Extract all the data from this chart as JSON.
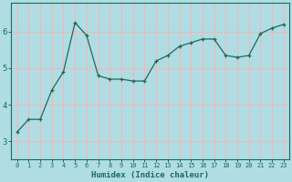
{
  "x": [
    0,
    1,
    2,
    3,
    4,
    5,
    6,
    7,
    8,
    9,
    10,
    11,
    12,
    13,
    14,
    15,
    16,
    17,
    18,
    19,
    20,
    21,
    22,
    23
  ],
  "y": [
    3.25,
    3.6,
    3.6,
    4.4,
    4.9,
    6.25,
    5.9,
    4.8,
    4.7,
    4.7,
    4.65,
    4.65,
    5.2,
    5.35,
    5.6,
    5.7,
    5.8,
    5.8,
    5.35,
    5.3,
    5.35,
    5.95,
    6.1,
    6.2
  ],
  "line_color": "#1a6b5a",
  "marker": "+",
  "marker_size": 3.5,
  "bg_color": "#b0dde4",
  "plot_bg_color": "#b0dde4",
  "grid_color": "#f0b8b8",
  "xlabel": "Humidex (Indice chaleur)",
  "xlabel_color": "#1a6b5a",
  "tick_color": "#1a6b5a",
  "spine_color": "#1a6b5a",
  "ylim": [
    2.5,
    6.8
  ],
  "xlim": [
    -0.5,
    23.5
  ],
  "yticks": [
    3,
    4,
    5,
    6
  ],
  "xticks": [
    0,
    1,
    2,
    3,
    4,
    5,
    6,
    7,
    8,
    9,
    10,
    11,
    12,
    13,
    14,
    15,
    16,
    17,
    18,
    19,
    20,
    21,
    22,
    23
  ]
}
